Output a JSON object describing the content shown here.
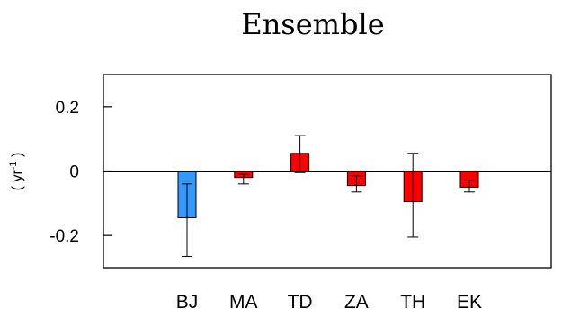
{
  "chart_data": {
    "type": "bar",
    "title": "Ensemble",
    "ylabel": "( yr",
    "ylabel_sup": "-1",
    "ylabel_close": " )",
    "categories": [
      "BJ",
      "MA",
      "TD",
      "ZA",
      "TH",
      "EK"
    ],
    "values": [
      -0.145,
      -0.02,
      0.055,
      -0.045,
      -0.095,
      -0.05
    ],
    "error_low": [
      -0.265,
      -0.04,
      -0.005,
      -0.065,
      -0.205,
      -0.065
    ],
    "error_high": [
      -0.04,
      -0.01,
      0.11,
      -0.015,
      0.055,
      -0.03
    ],
    "colors": [
      "#3399ff",
      "#ff0000",
      "#ff0000",
      "#ff0000",
      "#ff0000",
      "#ff0000"
    ],
    "ylim": [
      -0.3,
      0.3
    ],
    "yticks": [
      0.2,
      0,
      -0.2
    ],
    "ytick_labels": [
      "0.2",
      "0",
      "-0.2"
    ],
    "zero_line": true,
    "grid": false
  }
}
